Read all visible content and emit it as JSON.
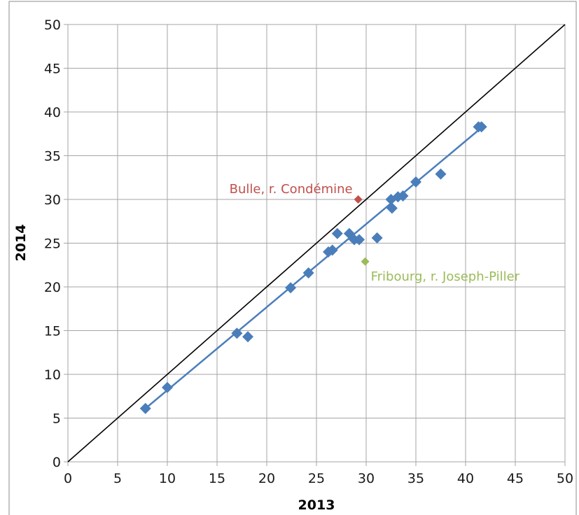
{
  "chart_data": {
    "type": "scatter",
    "title": "",
    "xlabel": "2013",
    "ylabel": "2014",
    "xlim": [
      0,
      50
    ],
    "ylim": [
      0,
      50
    ],
    "x_ticks": [
      "0",
      "5",
      "10",
      "15",
      "20",
      "25",
      "30",
      "35",
      "40",
      "45",
      "50"
    ],
    "y_ticks": [
      "0",
      "5",
      "10",
      "15",
      "20",
      "25",
      "30",
      "35",
      "40",
      "45",
      "50"
    ],
    "grid": true,
    "legend": "none",
    "colors": {
      "series": "#4a7ebb",
      "trend": "#4a7ebb",
      "identity": "#000000",
      "bulle": "#c0504d",
      "fribourg": "#9bbb59",
      "grid": "#a6a6a6"
    },
    "series": [
      {
        "x": [
          7.8,
          10.0,
          17.0,
          18.1,
          22.4,
          24.2,
          26.2,
          26.6,
          27.1,
          28.3,
          28.8,
          29.3,
          31.1,
          32.5,
          32.6,
          33.2,
          33.7,
          35.0,
          37.5,
          41.3,
          41.6
        ],
        "y": [
          6.1,
          8.5,
          14.7,
          14.3,
          19.9,
          21.6,
          24.0,
          24.2,
          26.1,
          26.1,
          25.4,
          25.4,
          25.6,
          30.0,
          29.0,
          30.3,
          30.4,
          32.0,
          32.9,
          38.3,
          38.3
        ]
      }
    ],
    "trendline": {
      "x": [
        7.8,
        41.6
      ],
      "y": [
        6.1,
        38.2
      ]
    },
    "reference_line": {
      "x": [
        0,
        50
      ],
      "y": [
        0,
        50
      ]
    },
    "annotations": [
      {
        "text": "Bulle, r. Condémine",
        "x": 29.2,
        "y": 30.0,
        "color": "#c0504d"
      },
      {
        "text": "Fribourg, r. Joseph-Piller",
        "x": 29.9,
        "y": 22.9,
        "color": "#9bbb59"
      }
    ]
  }
}
